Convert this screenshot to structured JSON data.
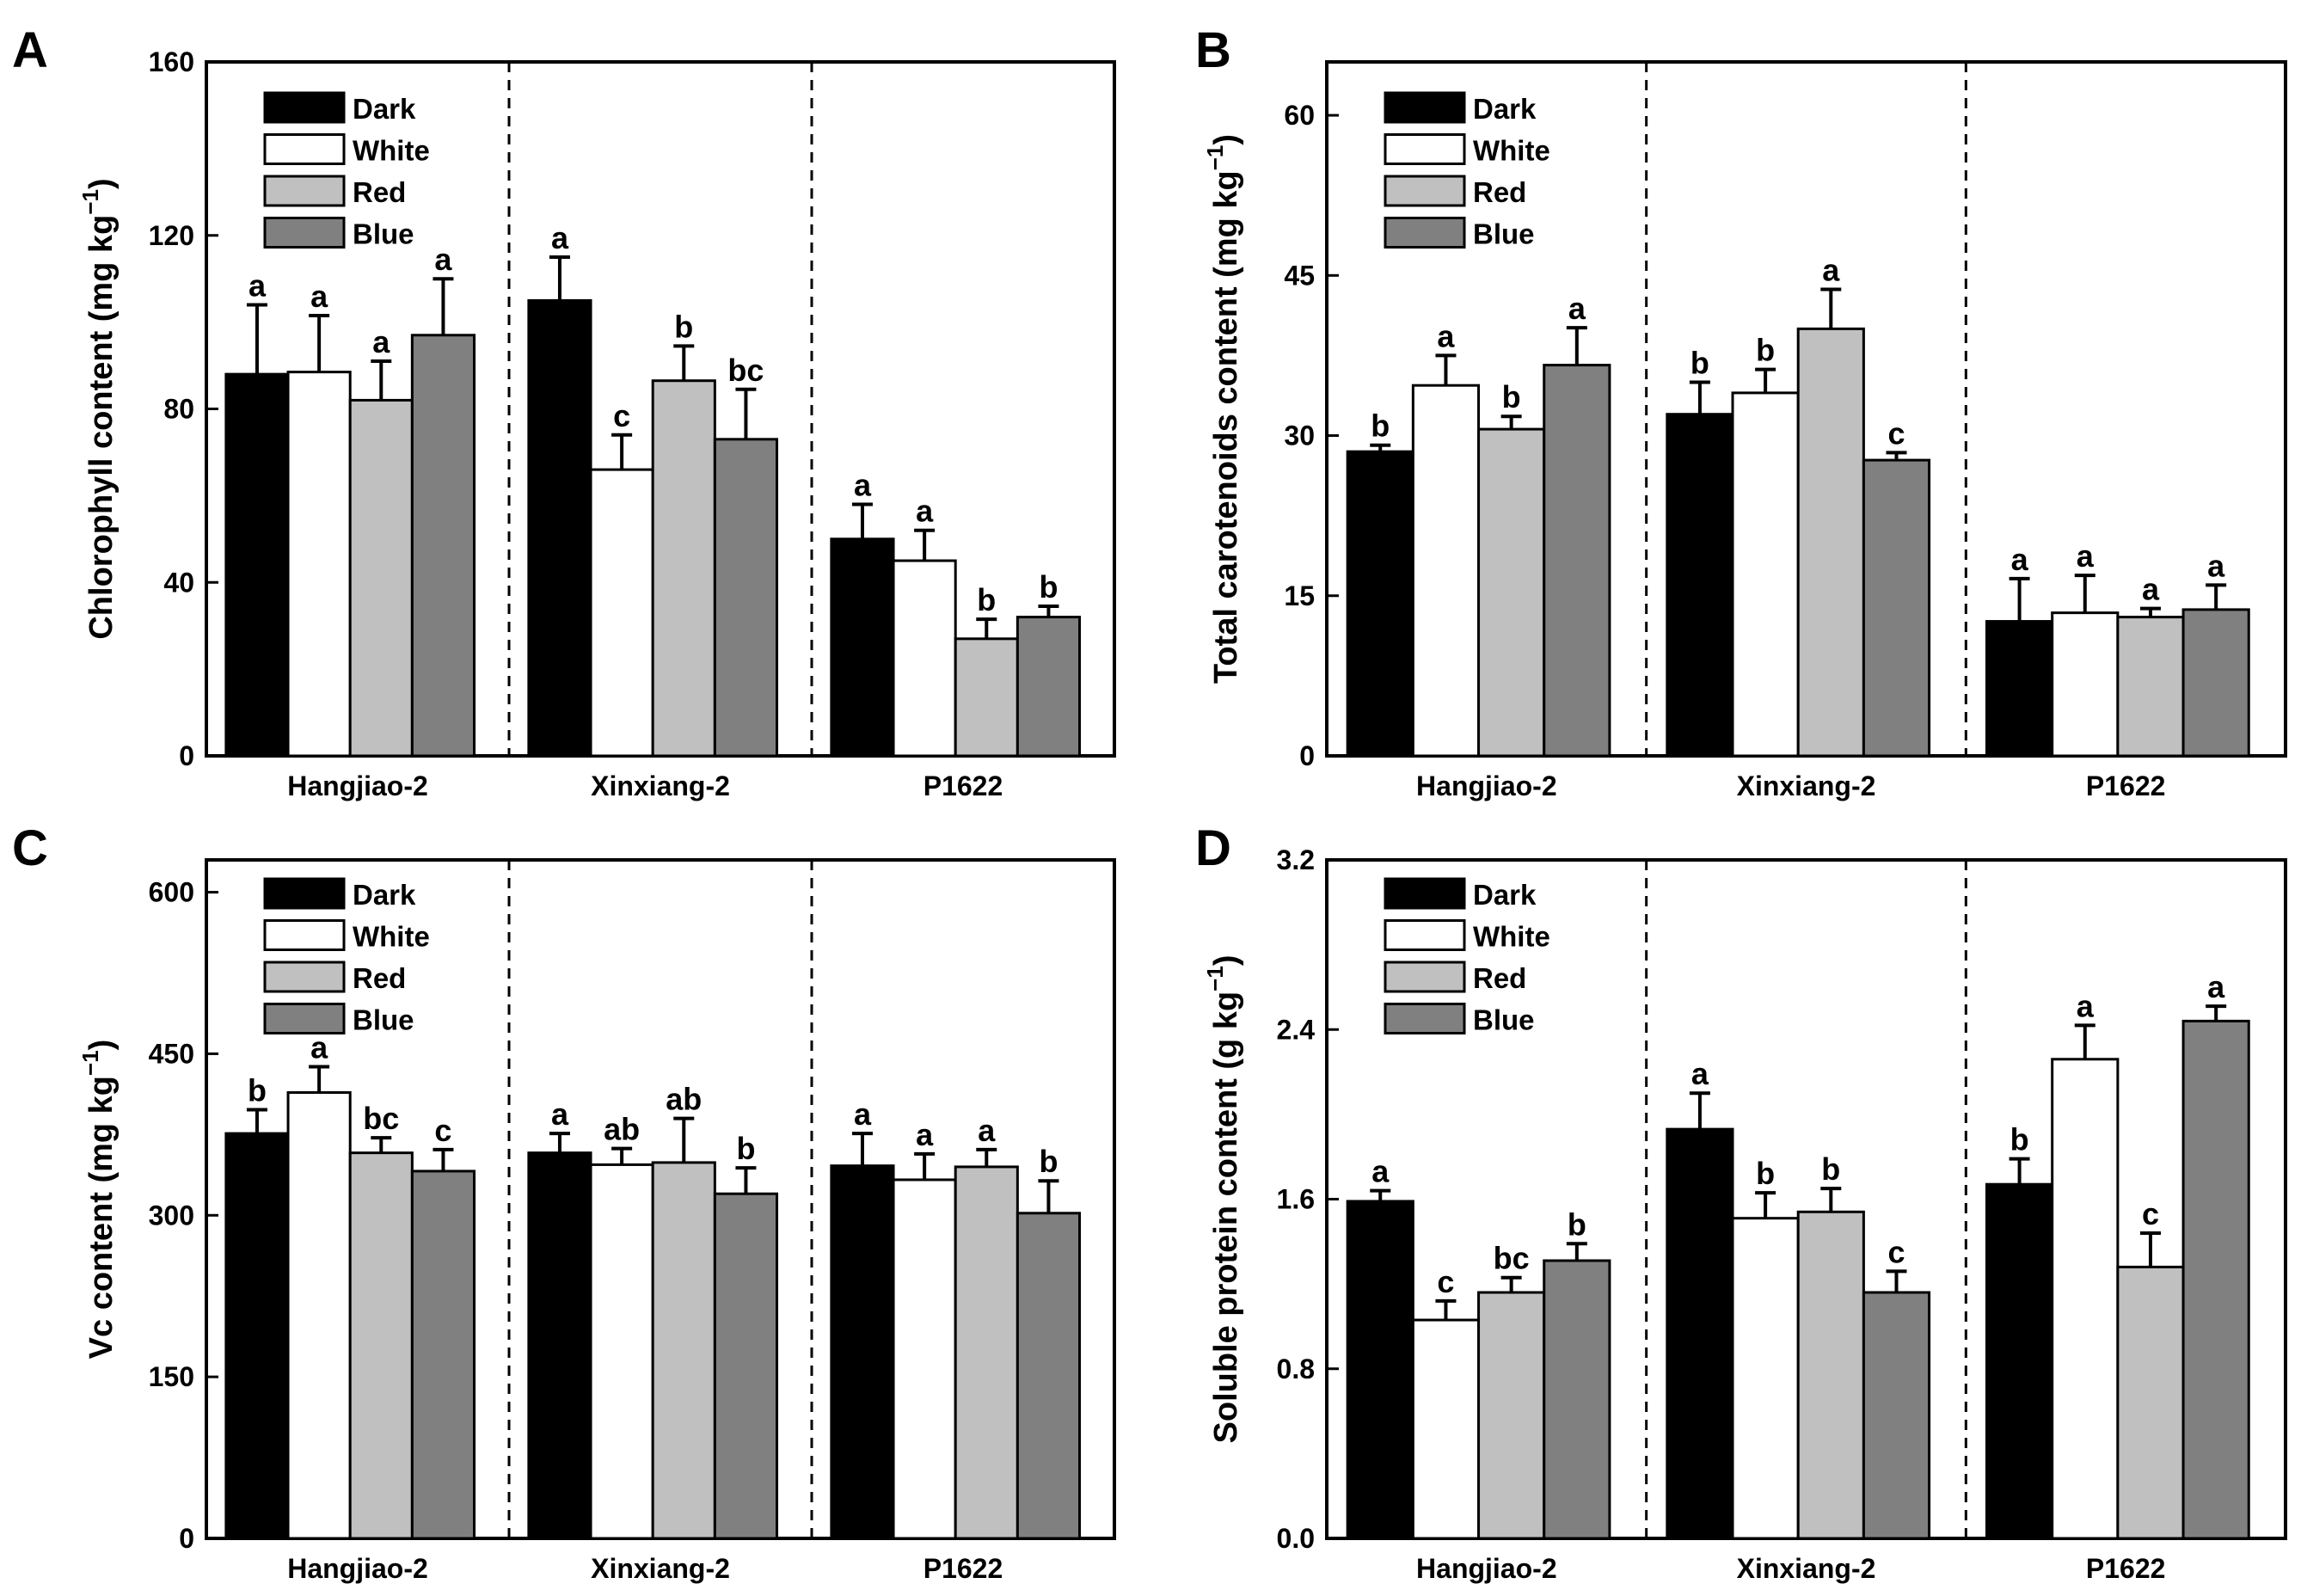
{
  "series_colors": {
    "Dark": "#000000",
    "White": "#ffffff",
    "Red": "#c0c0c0",
    "Blue": "#808080"
  },
  "chart_data": [
    {
      "panel": "A",
      "type": "bar",
      "ylabel": "Chlorophyll content (mg kg",
      "ylabel_sup": "−1",
      "ylabel_close": ")",
      "ylim": [
        0,
        160
      ],
      "yticks": [
        "0",
        "40",
        "80",
        "120",
        "160"
      ],
      "ytick_values": [
        0,
        40,
        80,
        120,
        160
      ],
      "categories": [
        "Hangjiao-2",
        "Xinxiang-2",
        "P1622"
      ],
      "legend": [
        "Dark",
        "White",
        "Red",
        "Blue"
      ],
      "series": [
        {
          "name": "Dark",
          "values": [
            88,
            105,
            50
          ],
          "errors": [
            16,
            10,
            8
          ],
          "letters": [
            "a",
            "a",
            "a"
          ]
        },
        {
          "name": "White",
          "values": [
            88.5,
            66,
            45
          ],
          "errors": [
            13,
            8,
            7
          ],
          "letters": [
            "a",
            "c",
            "a"
          ]
        },
        {
          "name": "Red",
          "values": [
            82,
            86.5,
            27
          ],
          "errors": [
            9,
            8,
            4.5
          ],
          "letters": [
            "a",
            "b",
            "b"
          ]
        },
        {
          "name": "Blue",
          "values": [
            97,
            73,
            32
          ],
          "errors": [
            13,
            11.5,
            2.5
          ],
          "letters": [
            "a",
            "bc",
            "b"
          ]
        }
      ]
    },
    {
      "panel": "B",
      "type": "bar",
      "ylabel": "Total carotenoids content (mg kg",
      "ylabel_sup": "−1",
      "ylabel_close": ")",
      "ylim": [
        0,
        65
      ],
      "yticks": [
        "0",
        "15",
        "30",
        "45",
        "60"
      ],
      "ytick_values": [
        0,
        15,
        30,
        45,
        60
      ],
      "categories": [
        "Hangjiao-2",
        "Xinxiang-2",
        "P1622"
      ],
      "legend": [
        "Dark",
        "White",
        "Red",
        "Blue"
      ],
      "series": [
        {
          "name": "Dark",
          "values": [
            28.5,
            32,
            12.6
          ],
          "errors": [
            0.6,
            3,
            4
          ],
          "letters": [
            "b",
            "b",
            "a"
          ]
        },
        {
          "name": "White",
          "values": [
            34.7,
            34,
            13.4
          ],
          "errors": [
            2.8,
            2.2,
            3.5
          ],
          "letters": [
            "a",
            "b",
            "a"
          ]
        },
        {
          "name": "Red",
          "values": [
            30.6,
            40,
            13
          ],
          "errors": [
            1.2,
            3.7,
            0.8
          ],
          "letters": [
            "b",
            "a",
            "a"
          ]
        },
        {
          "name": "Blue",
          "values": [
            36.6,
            27.7,
            13.7
          ],
          "errors": [
            3.5,
            0.7,
            2.3
          ],
          "letters": [
            "a",
            "c",
            "a"
          ]
        }
      ]
    },
    {
      "panel": "C",
      "type": "bar",
      "ylabel": "Vc content (mg kg",
      "ylabel_sup": "−1",
      "ylabel_close": ")",
      "ylim": [
        0,
        630
      ],
      "yticks": [
        "0",
        "150",
        "300",
        "450",
        "600"
      ],
      "ytick_values": [
        0,
        150,
        300,
        450,
        600
      ],
      "categories": [
        "Hangjiao-2",
        "Xinxiang-2",
        "P1622"
      ],
      "legend": [
        "Dark",
        "White",
        "Red",
        "Blue"
      ],
      "series": [
        {
          "name": "Dark",
          "values": [
            376,
            358,
            346
          ],
          "errors": [
            22,
            18,
            30
          ],
          "letters": [
            "b",
            "a",
            "a"
          ]
        },
        {
          "name": "White",
          "values": [
            414,
            347,
            333
          ],
          "errors": [
            24,
            15,
            24
          ],
          "letters": [
            "a",
            "ab",
            "a"
          ]
        },
        {
          "name": "Red",
          "values": [
            358,
            349,
            345
          ],
          "errors": [
            14,
            41,
            16
          ],
          "letters": [
            "bc",
            "ab",
            "a"
          ]
        },
        {
          "name": "Blue",
          "values": [
            341,
            320,
            302
          ],
          "errors": [
            20,
            24,
            30
          ],
          "letters": [
            "c",
            "b",
            "b"
          ]
        }
      ]
    },
    {
      "panel": "D",
      "type": "bar",
      "ylabel": "Soluble protein content (g kg",
      "ylabel_sup": "−1",
      "ylabel_close": ")",
      "ylim": [
        0,
        3.2
      ],
      "yticks": [
        "0.0",
        "0.8",
        "1.6",
        "2.4",
        "3.2"
      ],
      "ytick_values": [
        0,
        0.8,
        1.6,
        2.4,
        3.2
      ],
      "categories": [
        "Hangjiao-2",
        "Xinxiang-2",
        "P1622"
      ],
      "legend": [
        "Dark",
        "White",
        "Red",
        "Blue"
      ],
      "series": [
        {
          "name": "Dark",
          "values": [
            1.59,
            1.93,
            1.67
          ],
          "errors": [
            0.05,
            0.17,
            0.12
          ],
          "letters": [
            "a",
            "a",
            "b"
          ]
        },
        {
          "name": "White",
          "values": [
            1.03,
            1.51,
            2.26
          ],
          "errors": [
            0.09,
            0.12,
            0.16
          ],
          "letters": [
            "c",
            "b",
            "a"
          ]
        },
        {
          "name": "Red",
          "values": [
            1.16,
            1.54,
            1.28
          ],
          "errors": [
            0.07,
            0.11,
            0.16
          ],
          "letters": [
            "bc",
            "b",
            "c"
          ]
        },
        {
          "name": "Blue",
          "values": [
            1.31,
            1.16,
            2.44
          ],
          "errors": [
            0.08,
            0.1,
            0.07
          ],
          "letters": [
            "b",
            "c",
            "a"
          ]
        }
      ]
    }
  ]
}
